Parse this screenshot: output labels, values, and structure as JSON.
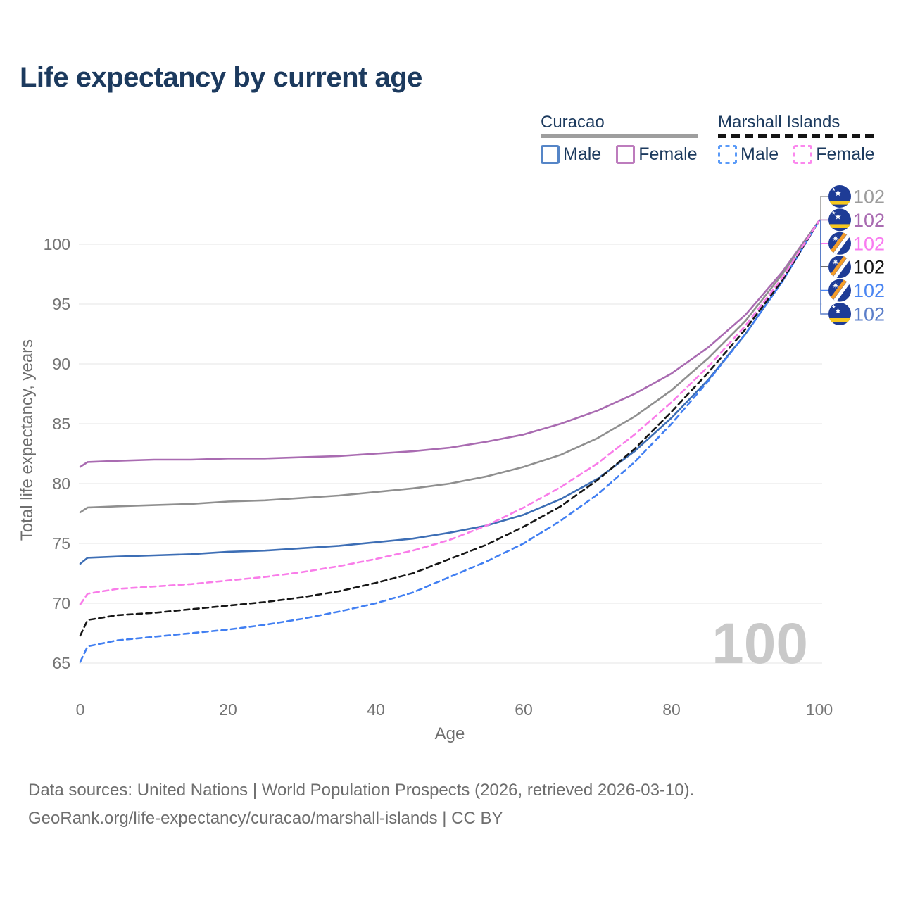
{
  "header": {
    "title": "Life expectancy by current age"
  },
  "legend": {
    "groups": [
      {
        "label": "Curacao",
        "line_style": "solid",
        "underline_color": "#9e9e9e",
        "items": [
          {
            "label": "Male",
            "color": "#5585c7",
            "dashed": false
          },
          {
            "label": "Female",
            "color": "#bd7cbd",
            "dashed": false
          }
        ]
      },
      {
        "label": "Marshall Islands",
        "line_style": "dashed",
        "underline_color": "#141414",
        "items": [
          {
            "label": "Male",
            "color": "#5b9bf8",
            "dashed": true
          },
          {
            "label": "Female",
            "color": "#fb88ee",
            "dashed": true
          }
        ]
      }
    ]
  },
  "chart_data": {
    "type": "line",
    "title": "Life expectancy by current age",
    "xlabel": "Age",
    "ylabel": "Total life expectancy, years",
    "xlim": [
      0,
      100
    ],
    "ylim": [
      65,
      102.5
    ],
    "x_ticks": [
      0,
      20,
      40,
      60,
      80,
      100
    ],
    "y_ticks": [
      65,
      70,
      75,
      80,
      85,
      90,
      95,
      100
    ],
    "grid": "horizontal",
    "legend_position": "top-right",
    "cursor_age_label": "100",
    "ages": [
      0,
      1,
      5,
      10,
      15,
      20,
      25,
      30,
      35,
      40,
      45,
      50,
      55,
      60,
      65,
      70,
      75,
      80,
      85,
      90,
      95,
      100
    ],
    "series": [
      {
        "id": "curacao-all",
        "country": "Curacao",
        "sex": "All",
        "flag": "curacao",
        "color": "#8f8f8f",
        "dashed": false,
        "end_label": "102",
        "end_label_color": "#9c9c9c",
        "values": [
          77.6,
          78.0,
          78.1,
          78.2,
          78.3,
          78.5,
          78.6,
          78.8,
          79.0,
          79.3,
          79.6,
          80.0,
          80.6,
          81.4,
          82.4,
          83.8,
          85.6,
          87.8,
          90.5,
          93.6,
          97.5,
          102
        ]
      },
      {
        "id": "curacao-female",
        "country": "Curacao",
        "sex": "Female",
        "flag": "curacao",
        "color": "#a96bb1",
        "dashed": false,
        "end_label": "102",
        "end_label_color": "#a96bb1",
        "values": [
          81.4,
          81.8,
          81.9,
          82.0,
          82.0,
          82.1,
          82.1,
          82.2,
          82.3,
          82.5,
          82.7,
          83.0,
          83.5,
          84.1,
          85.0,
          86.1,
          87.5,
          89.2,
          91.4,
          94.1,
          97.7,
          102
        ]
      },
      {
        "id": "marshall-islands-female",
        "country": "Marshall Islands",
        "sex": "Female",
        "flag": "marshall-islands",
        "color": "#f97ce9",
        "dashed": true,
        "end_label": "102",
        "end_label_color": "#f97cf0",
        "values": [
          69.9,
          70.8,
          71.2,
          71.4,
          71.6,
          71.9,
          72.2,
          72.6,
          73.1,
          73.7,
          74.4,
          75.3,
          76.5,
          78.0,
          79.7,
          81.7,
          84.1,
          86.8,
          89.8,
          93.2,
          97.2,
          102
        ]
      },
      {
        "id": "marshall-islands-all",
        "country": "Marshall Islands",
        "sex": "All",
        "flag": "marshall-islands",
        "color": "#161616",
        "dashed": true,
        "end_label": "102",
        "end_label_color": "#161616",
        "values": [
          67.3,
          68.6,
          69.0,
          69.2,
          69.5,
          69.8,
          70.1,
          70.5,
          71.0,
          71.7,
          72.5,
          73.7,
          74.9,
          76.4,
          78.1,
          80.3,
          82.9,
          86.0,
          89.3,
          92.9,
          97.0,
          102
        ]
      },
      {
        "id": "marshall-islands-male",
        "country": "Marshall Islands",
        "sex": "Male",
        "flag": "marshall-islands",
        "color": "#417ff2",
        "dashed": true,
        "end_label": "102",
        "end_label_color": "#4b86f2",
        "values": [
          65.1,
          66.4,
          66.9,
          67.2,
          67.5,
          67.8,
          68.2,
          68.7,
          69.3,
          70.0,
          70.9,
          72.2,
          73.5,
          75.0,
          76.9,
          79.1,
          81.8,
          85.0,
          88.6,
          92.5,
          96.9,
          102
        ]
      },
      {
        "id": "curacao-male",
        "country": "Curacao",
        "sex": "Male",
        "flag": "curacao",
        "color": "#3d6eb5",
        "dashed": false,
        "end_label": "102",
        "end_label_color": "#5b7ec9",
        "values": [
          73.3,
          73.8,
          73.9,
          74.0,
          74.1,
          74.3,
          74.4,
          74.6,
          74.8,
          75.1,
          75.4,
          75.9,
          76.5,
          77.4,
          78.7,
          80.4,
          82.7,
          85.5,
          88.7,
          92.5,
          96.9,
          102
        ]
      }
    ]
  },
  "source": {
    "line1": "Data sources: United Nations | World Population Prospects (2026, retrieved 2026-03-10).",
    "line2": "GeoRank.org/life-expectancy/curacao/marshall-islands | CC BY"
  }
}
